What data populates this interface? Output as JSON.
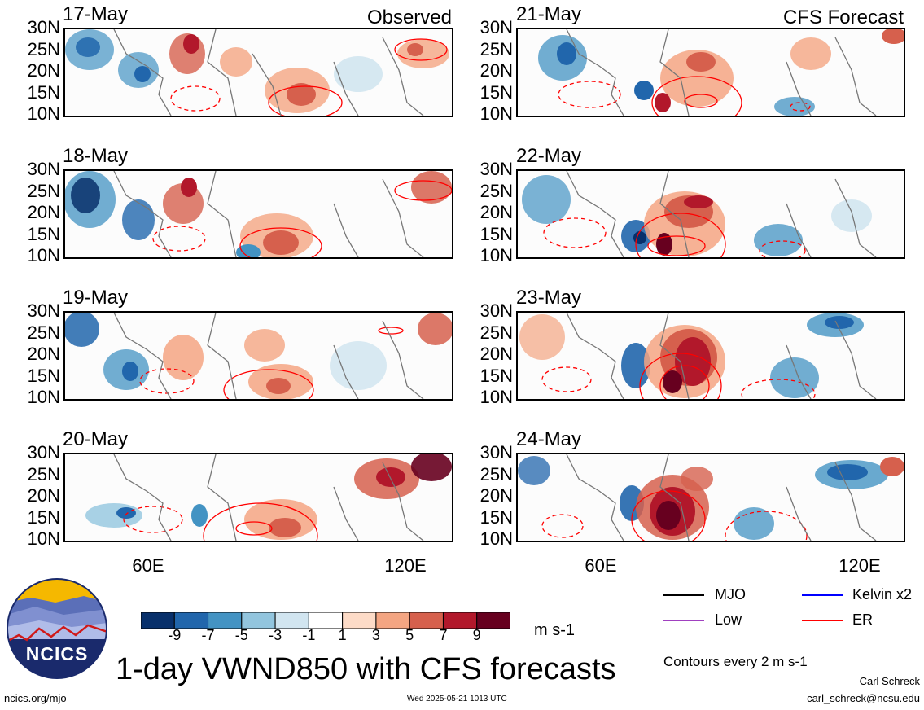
{
  "header": {
    "observed_label": "Observed",
    "forecast_label": "CFS Forecast"
  },
  "panels": {
    "observed": [
      {
        "date": "17-May"
      },
      {
        "date": "18-May"
      },
      {
        "date": "19-May"
      },
      {
        "date": "20-May"
      }
    ],
    "forecast": [
      {
        "date": "21-May"
      },
      {
        "date": "22-May"
      },
      {
        "date": "23-May"
      },
      {
        "date": "24-May"
      }
    ]
  },
  "axes": {
    "lat_ticks": [
      "30N",
      "25N",
      "20N",
      "15N",
      "10N"
    ],
    "lon_ticks": [
      "60E",
      "120E"
    ]
  },
  "colorbar": {
    "ticks": [
      "-9",
      "-7",
      "-5",
      "-3",
      "-1",
      "1",
      "3",
      "5",
      "7",
      "9"
    ],
    "colors": [
      "#08306b",
      "#2166ac",
      "#4393c3",
      "#92c5de",
      "#d1e5f0",
      "#ffffff",
      "#fddbc7",
      "#f4a582",
      "#d6604d",
      "#b2182b",
      "#67001f"
    ],
    "units": "m s-1"
  },
  "title": "1-day VWND850 with CFS forecasts",
  "legend": {
    "items": [
      {
        "label": "MJO",
        "color": "#000000"
      },
      {
        "label": "Kelvin x2",
        "color": "#0000ff"
      },
      {
        "label": "Low",
        "color": "#a040c0"
      },
      {
        "label": "ER",
        "color": "#ff0000"
      }
    ],
    "contour_note": "Contours every 2 m s-1"
  },
  "footer": {
    "website": "ncics.org/mjo",
    "timestamp": "Wed 2025-05-21 1013 UTC",
    "author": "Carl Schreck",
    "email": "carl_schreck@ncsu.edu",
    "logo_text": "NCICS"
  }
}
